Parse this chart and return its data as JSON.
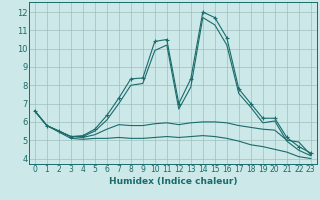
{
  "xlabel": "Humidex (Indice chaleur)",
  "ylabel": "",
  "xlim": [
    -0.5,
    23.5
  ],
  "ylim": [
    3.7,
    12.55
  ],
  "yticks": [
    4,
    5,
    6,
    7,
    8,
    9,
    10,
    11,
    12
  ],
  "xticks": [
    0,
    1,
    2,
    3,
    4,
    5,
    6,
    7,
    8,
    9,
    10,
    11,
    12,
    13,
    14,
    15,
    16,
    17,
    18,
    19,
    20,
    21,
    22,
    23
  ],
  "bg_color": "#cce8e8",
  "grid_color": "#9fbfbf",
  "line_color": "#1a6b6b",
  "lines": [
    {
      "x": [
        0,
        1,
        2,
        3,
        4,
        5,
        6,
        7,
        8,
        9,
        10,
        11,
        12,
        13,
        14,
        15,
        16,
        17,
        18,
        19,
        20,
        21,
        22,
        23
      ],
      "y": [
        6.6,
        5.8,
        5.5,
        5.2,
        5.25,
        5.6,
        6.35,
        7.3,
        8.35,
        8.4,
        10.4,
        10.5,
        7.0,
        8.35,
        12.0,
        11.7,
        10.6,
        7.8,
        7.0,
        6.2,
        6.2,
        5.15,
        4.65,
        4.3
      ],
      "marker": "+"
    },
    {
      "x": [
        0,
        1,
        2,
        3,
        4,
        5,
        6,
        7,
        8,
        9,
        10,
        11,
        12,
        13,
        14,
        15,
        16,
        17,
        18,
        19,
        20,
        21,
        22,
        23
      ],
      "y": [
        6.6,
        5.8,
        5.5,
        5.2,
        5.2,
        5.5,
        6.1,
        7.0,
        8.0,
        8.1,
        9.9,
        10.2,
        6.7,
        7.9,
        11.7,
        11.3,
        10.2,
        7.55,
        6.8,
        5.95,
        6.05,
        4.95,
        4.45,
        4.15
      ],
      "marker": null
    },
    {
      "x": [
        0,
        1,
        2,
        3,
        4,
        5,
        6,
        7,
        8,
        9,
        10,
        11,
        12,
        13,
        14,
        15,
        16,
        17,
        18,
        19,
        20,
        21,
        22,
        23
      ],
      "y": [
        6.6,
        5.8,
        5.5,
        5.2,
        5.15,
        5.3,
        5.6,
        5.85,
        5.8,
        5.8,
        5.9,
        5.95,
        5.85,
        5.95,
        6.0,
        6.0,
        5.95,
        5.8,
        5.7,
        5.6,
        5.55,
        5.0,
        4.9,
        4.2
      ],
      "marker": null
    },
    {
      "x": [
        0,
        1,
        2,
        3,
        4,
        5,
        6,
        7,
        8,
        9,
        10,
        11,
        12,
        13,
        14,
        15,
        16,
        17,
        18,
        19,
        20,
        21,
        22,
        23
      ],
      "y": [
        6.6,
        5.8,
        5.45,
        5.1,
        5.05,
        5.1,
        5.1,
        5.15,
        5.1,
        5.1,
        5.15,
        5.2,
        5.15,
        5.2,
        5.25,
        5.2,
        5.1,
        4.95,
        4.75,
        4.65,
        4.5,
        4.35,
        4.1,
        4.0
      ],
      "marker": null
    }
  ]
}
